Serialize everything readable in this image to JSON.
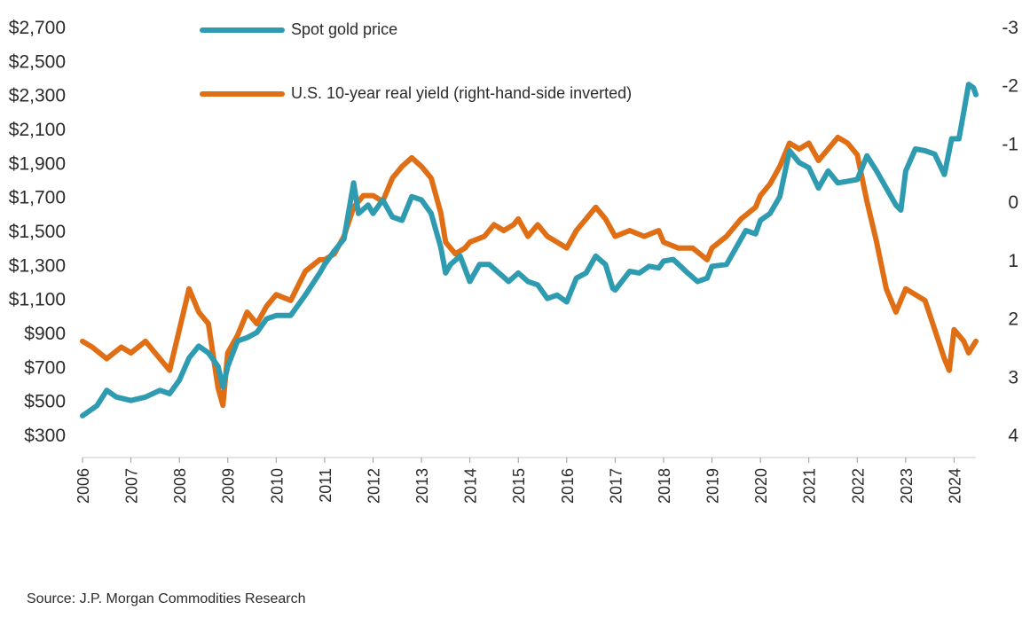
{
  "chart_data": {
    "type": "line",
    "title": "",
    "xlabel": "",
    "ylabel_left": "",
    "ylabel_right": "",
    "source": "Source: J.P. Morgan Commodities Research",
    "grid": false,
    "legend_placement": "top-left",
    "x_ticks": [
      "2006",
      "2007",
      "2008",
      "2009",
      "2010",
      "2011",
      "2012",
      "2013",
      "2014",
      "2015",
      "2016",
      "2017",
      "2018",
      "2019",
      "2020",
      "2021",
      "2022",
      "2023",
      "2024"
    ],
    "y_left_ticks": [
      "$2,700",
      "$2,500",
      "$2,300",
      "$2,100",
      "$1,900",
      "$1,700",
      "$1,500",
      "$1,300",
      "$1,100",
      "$900",
      "$700",
      "$500",
      "$300"
    ],
    "y_left_range": [
      300,
      2700
    ],
    "y_right_ticks": [
      "-3",
      "-2",
      "-1",
      "0",
      "1",
      "2",
      "3",
      "4"
    ],
    "y_right_range": [
      -3,
      4
    ],
    "y_right_inverted": true,
    "series": [
      {
        "name": "Spot gold price",
        "axis": "left",
        "color": "#2E9BB0",
        "points": [
          [
            2006.0,
            410
          ],
          [
            2006.3,
            470
          ],
          [
            2006.5,
            560
          ],
          [
            2006.7,
            520
          ],
          [
            2007.0,
            500
          ],
          [
            2007.3,
            520
          ],
          [
            2007.6,
            560
          ],
          [
            2007.8,
            540
          ],
          [
            2008.0,
            620
          ],
          [
            2008.2,
            750
          ],
          [
            2008.4,
            820
          ],
          [
            2008.6,
            780
          ],
          [
            2008.8,
            700
          ],
          [
            2008.9,
            580
          ],
          [
            2009.0,
            700
          ],
          [
            2009.2,
            850
          ],
          [
            2009.4,
            870
          ],
          [
            2009.6,
            900
          ],
          [
            2009.8,
            980
          ],
          [
            2010.0,
            1000
          ],
          [
            2010.3,
            1000
          ],
          [
            2010.6,
            1120
          ],
          [
            2010.9,
            1250
          ],
          [
            2011.0,
            1300
          ],
          [
            2011.2,
            1380
          ],
          [
            2011.4,
            1450
          ],
          [
            2011.6,
            1780
          ],
          [
            2011.7,
            1600
          ],
          [
            2011.9,
            1650
          ],
          [
            2012.0,
            1600
          ],
          [
            2012.2,
            1680
          ],
          [
            2012.4,
            1580
          ],
          [
            2012.6,
            1560
          ],
          [
            2012.8,
            1700
          ],
          [
            2013.0,
            1680
          ],
          [
            2013.2,
            1600
          ],
          [
            2013.4,
            1400
          ],
          [
            2013.5,
            1250
          ],
          [
            2013.6,
            1300
          ],
          [
            2013.8,
            1350
          ],
          [
            2014.0,
            1200
          ],
          [
            2014.2,
            1300
          ],
          [
            2014.4,
            1300
          ],
          [
            2014.6,
            1250
          ],
          [
            2014.8,
            1200
          ],
          [
            2015.0,
            1250
          ],
          [
            2015.2,
            1200
          ],
          [
            2015.4,
            1180
          ],
          [
            2015.6,
            1100
          ],
          [
            2015.8,
            1120
          ],
          [
            2016.0,
            1080
          ],
          [
            2016.2,
            1220
          ],
          [
            2016.4,
            1250
          ],
          [
            2016.6,
            1350
          ],
          [
            2016.8,
            1300
          ],
          [
            2016.95,
            1160
          ],
          [
            2017.0,
            1150
          ],
          [
            2017.3,
            1260
          ],
          [
            2017.5,
            1250
          ],
          [
            2017.7,
            1290
          ],
          [
            2017.9,
            1280
          ],
          [
            2018.0,
            1320
          ],
          [
            2018.2,
            1330
          ],
          [
            2018.5,
            1250
          ],
          [
            2018.7,
            1200
          ],
          [
            2018.9,
            1220
          ],
          [
            2019.0,
            1290
          ],
          [
            2019.3,
            1300
          ],
          [
            2019.5,
            1400
          ],
          [
            2019.7,
            1500
          ],
          [
            2019.9,
            1480
          ],
          [
            2020.0,
            1560
          ],
          [
            2020.2,
            1600
          ],
          [
            2020.4,
            1700
          ],
          [
            2020.6,
            1970
          ],
          [
            2020.8,
            1900
          ],
          [
            2021.0,
            1870
          ],
          [
            2021.2,
            1750
          ],
          [
            2021.4,
            1850
          ],
          [
            2021.6,
            1780
          ],
          [
            2021.8,
            1790
          ],
          [
            2022.0,
            1800
          ],
          [
            2022.2,
            1940
          ],
          [
            2022.4,
            1850
          ],
          [
            2022.6,
            1750
          ],
          [
            2022.8,
            1650
          ],
          [
            2022.9,
            1620
          ],
          [
            2023.0,
            1850
          ],
          [
            2023.2,
            1980
          ],
          [
            2023.4,
            1970
          ],
          [
            2023.6,
            1950
          ],
          [
            2023.8,
            1830
          ],
          [
            2023.95,
            2040
          ],
          [
            2024.1,
            2040
          ],
          [
            2024.2,
            2200
          ],
          [
            2024.3,
            2360
          ],
          [
            2024.4,
            2340
          ],
          [
            2024.45,
            2300
          ]
        ]
      },
      {
        "name": "U.S. 10-year real yield (right-hand-side inverted)",
        "axis": "right",
        "color": "#E06E14",
        "points": [
          [
            2006.0,
            2.4
          ],
          [
            2006.2,
            2.5
          ],
          [
            2006.5,
            2.7
          ],
          [
            2006.8,
            2.5
          ],
          [
            2007.0,
            2.6
          ],
          [
            2007.3,
            2.4
          ],
          [
            2007.6,
            2.7
          ],
          [
            2007.8,
            2.9
          ],
          [
            2008.0,
            2.2
          ],
          [
            2008.2,
            1.5
          ],
          [
            2008.4,
            1.9
          ],
          [
            2008.6,
            2.1
          ],
          [
            2008.8,
            3.2
          ],
          [
            2008.9,
            3.5
          ],
          [
            2009.0,
            2.6
          ],
          [
            2009.2,
            2.3
          ],
          [
            2009.4,
            1.9
          ],
          [
            2009.6,
            2.1
          ],
          [
            2009.8,
            1.8
          ],
          [
            2010.0,
            1.6
          ],
          [
            2010.3,
            1.7
          ],
          [
            2010.6,
            1.2
          ],
          [
            2010.9,
            1.0
          ],
          [
            2011.0,
            1.0
          ],
          [
            2011.2,
            0.9
          ],
          [
            2011.4,
            0.6
          ],
          [
            2011.6,
            0.1
          ],
          [
            2011.8,
            -0.1
          ],
          [
            2012.0,
            -0.1
          ],
          [
            2012.2,
            0.0
          ],
          [
            2012.4,
            -0.4
          ],
          [
            2012.6,
            -0.6
          ],
          [
            2012.8,
            -0.75
          ],
          [
            2013.0,
            -0.6
          ],
          [
            2013.2,
            -0.4
          ],
          [
            2013.4,
            0.2
          ],
          [
            2013.5,
            0.7
          ],
          [
            2013.7,
            0.9
          ],
          [
            2013.9,
            0.8
          ],
          [
            2014.0,
            0.7
          ],
          [
            2014.3,
            0.6
          ],
          [
            2014.5,
            0.4
          ],
          [
            2014.7,
            0.5
          ],
          [
            2014.9,
            0.4
          ],
          [
            2015.0,
            0.3
          ],
          [
            2015.2,
            0.6
          ],
          [
            2015.4,
            0.4
          ],
          [
            2015.6,
            0.6
          ],
          [
            2015.8,
            0.7
          ],
          [
            2016.0,
            0.8
          ],
          [
            2016.2,
            0.5
          ],
          [
            2016.4,
            0.3
          ],
          [
            2016.6,
            0.1
          ],
          [
            2016.8,
            0.3
          ],
          [
            2017.0,
            0.6
          ],
          [
            2017.3,
            0.5
          ],
          [
            2017.6,
            0.6
          ],
          [
            2017.9,
            0.5
          ],
          [
            2018.0,
            0.7
          ],
          [
            2018.3,
            0.8
          ],
          [
            2018.6,
            0.8
          ],
          [
            2018.9,
            1.0
          ],
          [
            2019.0,
            0.8
          ],
          [
            2019.3,
            0.6
          ],
          [
            2019.6,
            0.3
          ],
          [
            2019.9,
            0.1
          ],
          [
            2020.0,
            -0.1
          ],
          [
            2020.2,
            -0.3
          ],
          [
            2020.4,
            -0.6
          ],
          [
            2020.6,
            -1.0
          ],
          [
            2020.8,
            -0.9
          ],
          [
            2021.0,
            -1.0
          ],
          [
            2021.2,
            -0.7
          ],
          [
            2021.4,
            -0.9
          ],
          [
            2021.6,
            -1.1
          ],
          [
            2021.8,
            -1.0
          ],
          [
            2022.0,
            -0.8
          ],
          [
            2022.2,
            0.0
          ],
          [
            2022.4,
            0.7
          ],
          [
            2022.6,
            1.5
          ],
          [
            2022.8,
            1.9
          ],
          [
            2023.0,
            1.5
          ],
          [
            2023.2,
            1.6
          ],
          [
            2023.4,
            1.7
          ],
          [
            2023.6,
            2.2
          ],
          [
            2023.8,
            2.7
          ],
          [
            2023.9,
            2.9
          ],
          [
            2024.0,
            2.2
          ],
          [
            2024.1,
            2.3
          ],
          [
            2024.2,
            2.4
          ],
          [
            2024.3,
            2.6
          ],
          [
            2024.45,
            2.4
          ]
        ]
      }
    ]
  }
}
